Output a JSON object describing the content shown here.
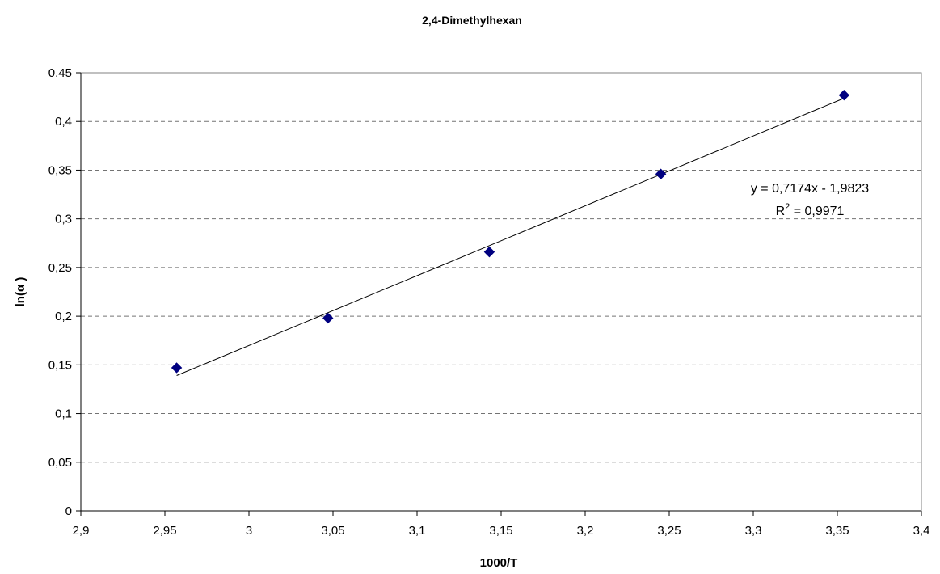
{
  "chart_data": {
    "type": "scatter",
    "title": "2,4-Dimethylhexan",
    "xlabel": "1000/T",
    "ylabel": "ln(α )",
    "xlim": [
      2.9,
      3.4
    ],
    "ylim": [
      0,
      0.45
    ],
    "x_ticks": [
      2.9,
      2.95,
      3.0,
      3.05,
      3.1,
      3.15,
      3.2,
      3.25,
      3.3,
      3.35,
      3.4
    ],
    "x_tick_labels": [
      "2,9",
      "2,95",
      "3",
      "3,05",
      "3,1",
      "3,15",
      "3,2",
      "3,25",
      "3,3",
      "3,35",
      "3,4"
    ],
    "y_ticks": [
      0,
      0.05,
      0.1,
      0.15,
      0.2,
      0.25,
      0.3,
      0.35,
      0.4,
      0.45
    ],
    "y_tick_labels": [
      "0",
      "0,05",
      "0,1",
      "0,15",
      "0,2",
      "0,25",
      "0,3",
      "0,35",
      "0,4",
      "0,45"
    ],
    "grid": "horizontal dashed",
    "marker_color": "#000080",
    "series": [
      {
        "x": [
          2.957,
          3.047,
          3.143,
          3.245,
          3.354
        ],
        "y": [
          0.147,
          0.198,
          0.266,
          0.346,
          0.427
        ]
      }
    ],
    "trendline": {
      "slope": 0.7174,
      "intercept": -1.9823,
      "x_range": [
        2.957,
        3.354
      ],
      "equation": "y = 0,7174x - 1,9823",
      "r2_prefix": "R",
      "r2_sup": "2",
      "r2_value": " = 0,9971"
    }
  }
}
